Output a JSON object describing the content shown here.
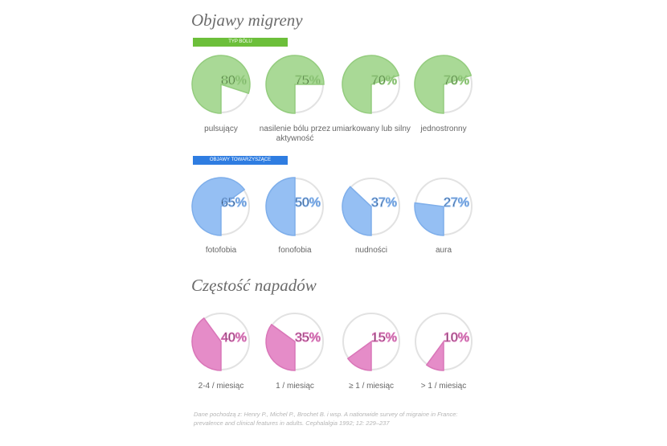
{
  "chart_data": [
    {
      "type": "pie",
      "title": "Objawy migreny",
      "subtitle": "TYP BÓLU",
      "banner_color": "#6cbf3a",
      "color": "#a9d996",
      "edge_color": "#94cc7e",
      "categories": [
        "pulsujący",
        "nasilenie bólu przez aktywność",
        "umiarkowany lub silny",
        "jednostronny"
      ],
      "values": [
        80,
        75,
        70,
        70
      ],
      "value_labels": [
        "80%",
        "75%",
        "70%",
        "70%"
      ]
    },
    {
      "type": "pie",
      "subtitle": "OBJAWY TOWARZYSZĄCE",
      "banner_color": "#2f7de1",
      "color": "#95bff3",
      "edge_color": "#7eaeea",
      "categories": [
        "fotofobia",
        "fonofobia",
        "nudności",
        "aura"
      ],
      "values": [
        65,
        50,
        37,
        27
      ],
      "value_labels": [
        "65%",
        "50%",
        "37%",
        "27%"
      ]
    },
    {
      "type": "pie",
      "title": "Częstość napadów",
      "color": "#e58cc8",
      "edge_color": "#d976b8",
      "categories": [
        "2-4 / miesiąc",
        "1 / miesiąc",
        "≥ 1 / miesiąc",
        "> 1 / miesiąc"
      ],
      "values": [
        40,
        35,
        15,
        10
      ],
      "value_labels": [
        "40%",
        "35%",
        "15%",
        "10%"
      ]
    }
  ],
  "source": "Dane pochodzą z: Henry P., Michel P., Brochet B. i wsp. A nationwide survey of migraine in France: prevalence and clinical features in adults. Cephalalgia 1992; 12: 229–237"
}
